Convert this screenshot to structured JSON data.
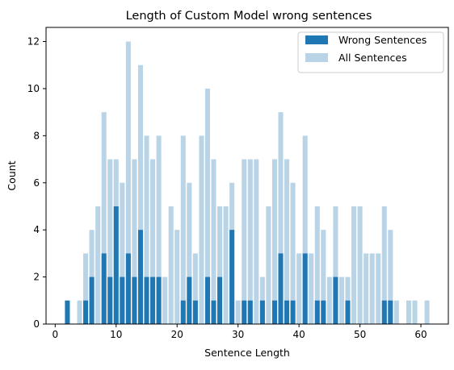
{
  "chart_data": {
    "type": "bar",
    "title": "Length of Custom Model wrong sentences",
    "xlabel": "Sentence Length",
    "ylabel": "Count",
    "xlim": [
      -1.5,
      64.5
    ],
    "ylim": [
      0,
      12.6
    ],
    "xticks": [
      0,
      10,
      20,
      30,
      40,
      50,
      60
    ],
    "yticks": [
      0,
      2,
      4,
      6,
      8,
      10,
      12
    ],
    "grid": false,
    "legend_position": "top-right",
    "series": [
      {
        "name": "All Sentences",
        "color": "#b9d4e6",
        "points": [
          [
            4,
            1
          ],
          [
            5,
            3
          ],
          [
            6,
            4
          ],
          [
            7,
            5
          ],
          [
            8,
            9
          ],
          [
            9,
            7
          ],
          [
            10,
            7
          ],
          [
            11,
            6
          ],
          [
            12,
            12
          ],
          [
            13,
            7
          ],
          [
            14,
            11
          ],
          [
            15,
            8
          ],
          [
            16,
            7
          ],
          [
            17,
            8
          ],
          [
            18,
            2
          ],
          [
            19,
            5
          ],
          [
            20,
            4
          ],
          [
            21,
            8
          ],
          [
            22,
            6
          ],
          [
            23,
            3
          ],
          [
            24,
            8
          ],
          [
            25,
            10
          ],
          [
            26,
            7
          ],
          [
            27,
            5
          ],
          [
            28,
            5
          ],
          [
            29,
            6
          ],
          [
            30,
            1
          ],
          [
            31,
            7
          ],
          [
            32,
            7
          ],
          [
            33,
            7
          ],
          [
            34,
            2
          ],
          [
            35,
            5
          ],
          [
            36,
            7
          ],
          [
            37,
            9
          ],
          [
            38,
            7
          ],
          [
            39,
            6
          ],
          [
            40,
            3
          ],
          [
            41,
            8
          ],
          [
            42,
            3
          ],
          [
            43,
            5
          ],
          [
            44,
            4
          ],
          [
            45,
            2
          ],
          [
            46,
            5
          ],
          [
            47,
            2
          ],
          [
            48,
            2
          ],
          [
            49,
            5
          ],
          [
            50,
            5
          ],
          [
            51,
            3
          ],
          [
            52,
            3
          ],
          [
            53,
            3
          ],
          [
            54,
            5
          ],
          [
            55,
            4
          ],
          [
            56,
            1
          ],
          [
            58,
            1
          ],
          [
            59,
            1
          ],
          [
            61,
            1
          ]
        ]
      },
      {
        "name": "Wrong Sentences",
        "color": "#1f77b4",
        "points": [
          [
            2,
            1
          ],
          [
            5,
            1
          ],
          [
            6,
            2
          ],
          [
            8,
            3
          ],
          [
            9,
            2
          ],
          [
            10,
            5
          ],
          [
            11,
            2
          ],
          [
            12,
            3
          ],
          [
            13,
            2
          ],
          [
            14,
            4
          ],
          [
            15,
            2
          ],
          [
            16,
            2
          ],
          [
            17,
            2
          ],
          [
            21,
            1
          ],
          [
            22,
            2
          ],
          [
            23,
            1
          ],
          [
            25,
            2
          ],
          [
            26,
            1
          ],
          [
            27,
            2
          ],
          [
            29,
            4
          ],
          [
            31,
            1
          ],
          [
            32,
            1
          ],
          [
            34,
            1
          ],
          [
            36,
            1
          ],
          [
            37,
            3
          ],
          [
            38,
            1
          ],
          [
            39,
            1
          ],
          [
            41,
            3
          ],
          [
            43,
            1
          ],
          [
            44,
            1
          ],
          [
            46,
            2
          ],
          [
            48,
            1
          ],
          [
            54,
            1
          ],
          [
            55,
            1
          ]
        ]
      }
    ]
  }
}
